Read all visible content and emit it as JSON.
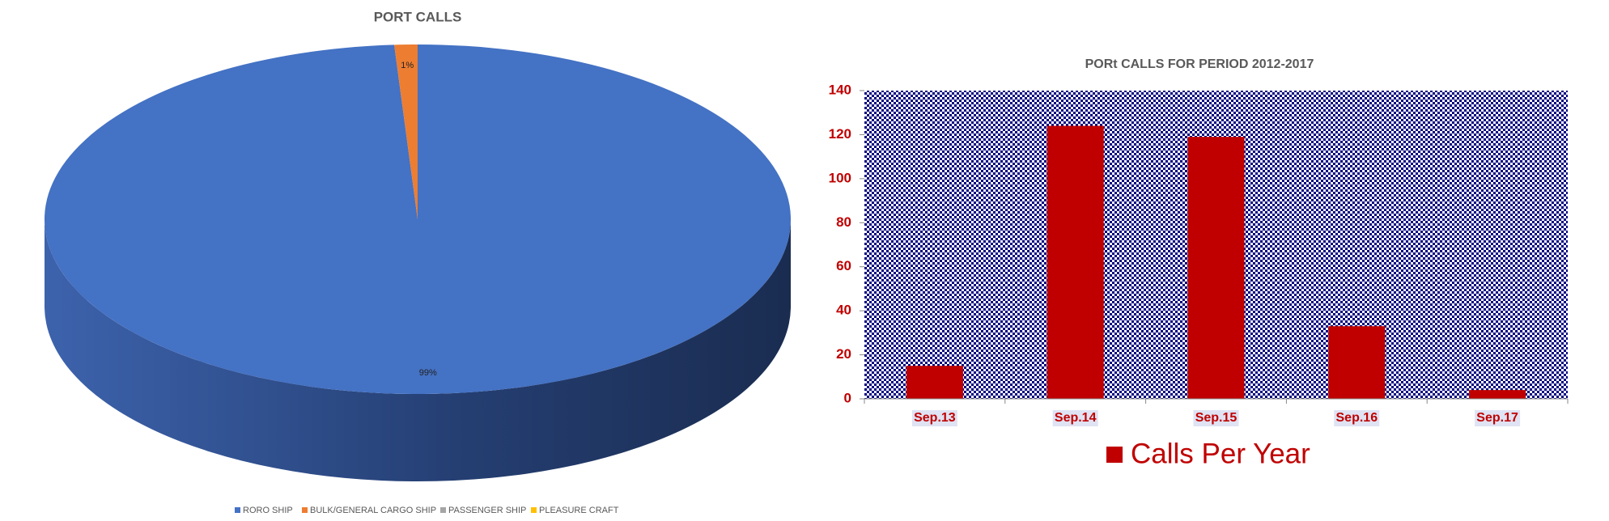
{
  "chart_data": [
    {
      "type": "pie",
      "title": "PORT CALLS",
      "categories": [
        "RORO SHIP",
        "BULK/GENERAL CARGO SHIP",
        "PASSENGER SHIP",
        "PLEASURE CRAFT"
      ],
      "values": [
        99,
        1,
        0,
        0
      ],
      "value_labels": [
        "99%",
        "1%",
        null,
        null
      ],
      "colors": [
        "#4472c4",
        "#ed7d31",
        "#a5a5a5",
        "#ffc000"
      ]
    },
    {
      "type": "bar",
      "title": "PORt CALLS FOR PERIOD 2012-2017",
      "categories": [
        "Sep.13",
        "Sep.14",
        "Sep.15",
        "Sep.16",
        "Sep.17"
      ],
      "series": [
        {
          "name": "Calls Per Year",
          "color": "#c00000",
          "values": [
            15,
            124,
            119,
            33,
            4
          ]
        }
      ],
      "ylim": [
        0,
        140
      ],
      "yticks": [
        0,
        20,
        40,
        60,
        80,
        100,
        120,
        140
      ],
      "grid": false
    }
  ]
}
